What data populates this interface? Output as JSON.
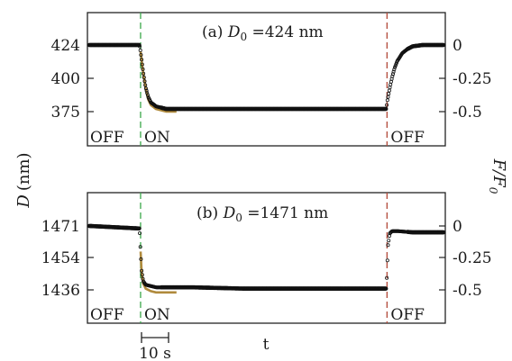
{
  "figure": {
    "left_axis_label": "D",
    "left_axis_unit": "(nm)",
    "right_axis_label": "F/F",
    "right_axis_subscript": "0",
    "x_axis_label": "t",
    "scale_bar_label": "10 s"
  },
  "colors": {
    "data": "#111111",
    "fit": "#b08a3c",
    "on_marker": "#3aa84a",
    "off_marker": "#b24a3a",
    "frame": "#222222"
  },
  "chart_data": [
    {
      "type": "line",
      "panel_label": "(a)",
      "title_symbol": "D",
      "title_subscript": "0",
      "title_value": " =424 nm",
      "left_ticks": [
        "424",
        "400",
        "375"
      ],
      "right_ticks": [
        "0",
        "-0.25",
        "-0.5"
      ],
      "left_ylim_nm": [
        353,
        445
      ],
      "right_ylim": [
        -0.65,
        0.05
      ],
      "xlim_s": [
        0,
        69
      ],
      "on_time_s": 10,
      "off_time_s": 58,
      "state_labels": [
        "OFF",
        "ON",
        "OFF"
      ],
      "baseline_F_F0": 0,
      "plateau_F_F0": -0.48,
      "fit_plateau_F_F0": -0.5,
      "off_recovery_tau_s": 1.4,
      "series": [
        {
          "x": [
            0,
            5,
            9.8,
            10,
            10.5,
            11,
            11.5,
            12,
            13,
            14,
            15,
            20,
            30,
            40,
            50,
            57.9,
            58,
            58.5,
            59,
            59.5,
            60,
            61,
            62,
            63,
            65,
            69
          ],
          "y": [
            0,
            0,
            0,
            -0.05,
            -0.2,
            -0.32,
            -0.39,
            -0.43,
            -0.46,
            -0.47,
            -0.48,
            -0.48,
            -0.48,
            -0.48,
            -0.48,
            -0.48,
            -0.43,
            -0.33,
            -0.24,
            -0.17,
            -0.12,
            -0.06,
            -0.03,
            -0.01,
            0,
            0
          ]
        },
        {
          "x": [
            10,
            10.5,
            11,
            11.5,
            12,
            13,
            14,
            15,
            16,
            17
          ],
          "y": [
            -0.05,
            -0.21,
            -0.33,
            -0.41,
            -0.45,
            -0.48,
            -0.49,
            -0.5,
            -0.5,
            -0.5
          ]
        }
      ]
    },
    {
      "type": "line",
      "panel_label": "(b)",
      "title_symbol": "D",
      "title_subscript": "0",
      "title_value": " =1471 nm",
      "left_ticks": [
        "1471",
        "1454",
        "1436"
      ],
      "right_ticks": [
        "0",
        "-0.25",
        "-0.5"
      ],
      "left_ylim_nm": [
        1422,
        1482
      ],
      "right_ylim": [
        -0.65,
        0.05
      ],
      "xlim_s": [
        0,
        69
      ],
      "on_time_s": 10,
      "off_time_s": 58,
      "state_labels": [
        "OFF",
        "ON",
        "OFF"
      ],
      "baseline_F_F0": 0,
      "plateau_F_F0": -0.48,
      "fit_plateau_F_F0": -0.52,
      "off_recovery_tau_s": 0.3,
      "series": [
        {
          "x": [
            0,
            5,
            9.8,
            10,
            10.2,
            10.5,
            11,
            12,
            13,
            15,
            20,
            30,
            40,
            50,
            55,
            57.9,
            58,
            58.2,
            58.5,
            59,
            60,
            63,
            66,
            69
          ],
          "y": [
            0,
            -0.01,
            -0.02,
            -0.2,
            -0.35,
            -0.43,
            -0.46,
            -0.47,
            -0.48,
            -0.48,
            -0.48,
            -0.49,
            -0.49,
            -0.49,
            -0.49,
            -0.49,
            -0.35,
            -0.15,
            -0.06,
            -0.04,
            -0.04,
            -0.05,
            -0.05,
            -0.05
          ]
        },
        {
          "x": [
            10,
            10.2,
            10.5,
            11,
            12,
            13,
            14,
            15,
            16,
            17
          ],
          "y": [
            -0.2,
            -0.36,
            -0.45,
            -0.49,
            -0.51,
            -0.52,
            -0.52,
            -0.52,
            -0.52,
            -0.52
          ]
        }
      ]
    }
  ]
}
